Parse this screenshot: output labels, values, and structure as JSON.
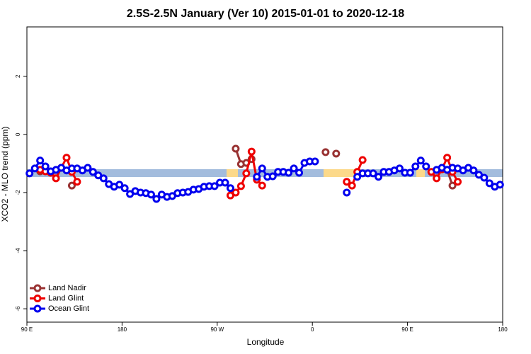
{
  "chart_data": {
    "type": "line",
    "title": "2.5S-2.5N January (Ver 10)   2015-01-01 to 2020-12-18",
    "xlabel": "Longitude",
    "ylabel": "XCO2 - MLO trend (ppm)",
    "xlim": [
      90,
      540
    ],
    "ylim": [
      -6.46,
      3.7
    ],
    "xticks": [
      {
        "value": 90,
        "label": "90 E"
      },
      180,
      {
        "value": 270,
        "label": "90 W"
      },
      {
        "value": 360,
        "label": "0"
      },
      {
        "value": 450,
        "label": "90 E"
      },
      {
        "value": 540,
        "label": "180"
      }
    ],
    "yticks": [
      -6,
      -4,
      -2,
      0,
      2
    ],
    "legend": "bottom-left",
    "x": [
      92.5,
      97.5,
      102.5,
      107.5,
      112.5,
      117.5,
      122.5,
      127.5,
      132.5,
      137.5,
      142.5,
      147.5,
      152.5,
      157.5,
      162.5,
      167.5,
      172.5,
      177.5,
      182.5,
      187.5,
      192.5,
      197.5,
      202.5,
      207.5,
      212.5,
      217.5,
      222.5,
      227.5,
      232.5,
      237.5,
      242.5,
      247.5,
      252.5,
      257.5,
      262.5,
      267.5,
      272.5,
      277.5,
      282.5,
      287.5,
      292.5,
      297.5,
      302.5,
      307.5,
      312.5,
      317.5,
      322.5,
      327.5,
      332.5,
      337.5,
      342.5,
      347.5,
      352.5,
      357.5,
      362.5,
      367.5,
      372.5,
      377.5,
      382.5,
      387.5,
      392.5,
      397.5,
      402.5,
      407.5,
      412.5,
      417.5,
      422.5,
      427.5,
      432.5,
      437.5,
      442.5,
      447.5,
      452.5,
      457.5,
      462.5,
      467.5,
      472.5,
      477.5,
      482.5,
      487.5,
      492.5,
      497.5,
      502.5,
      507.5,
      512.5,
      517.5,
      522.5,
      527.5,
      532.5,
      537.5
    ],
    "series": [
      {
        "name": "Land Nadir",
        "color": "#993333",
        "values": [
          null,
          null,
          -1.27,
          null,
          null,
          null,
          null,
          null,
          -1.76,
          null,
          null,
          null,
          null,
          null,
          null,
          null,
          null,
          null,
          null,
          null,
          null,
          null,
          null,
          null,
          null,
          null,
          null,
          null,
          null,
          null,
          null,
          null,
          null,
          null,
          null,
          null,
          null,
          null,
          null,
          -0.49,
          -1.02,
          -0.98,
          -0.85,
          null,
          null,
          null,
          null,
          null,
          null,
          null,
          null,
          null,
          null,
          null,
          null,
          null,
          -0.61,
          null,
          -0.66,
          null,
          null,
          null,
          null,
          null,
          null,
          null,
          null,
          null,
          null,
          null,
          null,
          null,
          null,
          null,
          null,
          null,
          null,
          null,
          null,
          -1.22,
          -1.76,
          null,
          null,
          null,
          null,
          null,
          null,
          null,
          null,
          null
        ]
      },
      {
        "name": "Land Glint",
        "color": "#ee0000",
        "values": [
          null,
          null,
          -1.22,
          -1.27,
          -1.32,
          -1.51,
          -1.15,
          -0.8,
          -1.29,
          -1.63,
          null,
          null,
          null,
          null,
          null,
          null,
          null,
          null,
          null,
          null,
          null,
          null,
          null,
          null,
          null,
          null,
          null,
          null,
          null,
          null,
          null,
          null,
          null,
          null,
          null,
          null,
          null,
          null,
          -2.1,
          -2.0,
          -1.78,
          -1.34,
          -0.59,
          -1.56,
          -1.76,
          null,
          null,
          null,
          null,
          null,
          null,
          null,
          null,
          null,
          null,
          null,
          null,
          null,
          null,
          null,
          -1.63,
          -1.76,
          -1.29,
          -0.88,
          null,
          null,
          null,
          null,
          null,
          null,
          null,
          null,
          null,
          null,
          null,
          null,
          -1.29,
          -1.51,
          -1.2,
          -0.8,
          -1.29,
          -1.63,
          null,
          null,
          null,
          null,
          null,
          null,
          null,
          null
        ]
      },
      {
        "name": "Ocean Glint",
        "color": "#0000ee",
        "values": [
          -1.34,
          -1.17,
          -0.9,
          -1.1,
          -1.27,
          -1.22,
          -1.15,
          -1.24,
          -1.17,
          -1.17,
          -1.24,
          -1.15,
          -1.29,
          -1.41,
          -1.51,
          -1.71,
          -1.8,
          -1.73,
          -1.85,
          -2.05,
          -1.95,
          -2.0,
          -2.02,
          -2.07,
          -2.22,
          -2.07,
          -2.15,
          -2.12,
          -2.02,
          -2.0,
          -1.98,
          -1.9,
          -1.88,
          -1.8,
          -1.78,
          -1.78,
          -1.66,
          -1.66,
          -1.85,
          null,
          null,
          null,
          null,
          -1.46,
          -1.17,
          -1.46,
          -1.44,
          -1.29,
          -1.29,
          -1.32,
          -1.17,
          -1.32,
          -0.98,
          -0.93,
          -0.93,
          null,
          null,
          null,
          null,
          null,
          -2.0,
          null,
          -1.46,
          -1.34,
          -1.34,
          -1.34,
          -1.46,
          -1.29,
          -1.29,
          -1.24,
          -1.17,
          -1.32,
          -1.32,
          -1.1,
          -0.9,
          -1.1,
          null,
          -1.22,
          -1.15,
          -1.22,
          -1.15,
          -1.17,
          -1.24,
          -1.15,
          -1.24,
          -1.39,
          -1.49,
          -1.68,
          -1.8,
          -1.73
        ]
      }
    ]
  }
}
